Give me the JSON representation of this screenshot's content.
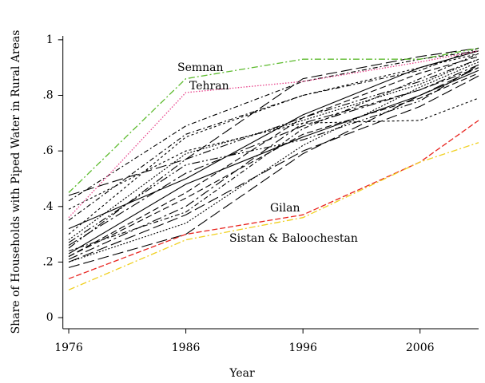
{
  "chart_data": {
    "type": "line",
    "x_label": "Year",
    "y_label": "Share of Households with Piped Water in Rural Areas",
    "x": [
      1976,
      1986,
      1996,
      2006,
      2011
    ],
    "xlim": [
      1975.5,
      2011
    ],
    "xticks": [
      1976,
      1986,
      1996,
      2006
    ],
    "ylim": [
      -0.04,
      1.014
    ],
    "yticks": [
      0,
      {
        "value": 0.2,
        "label": ".2"
      },
      {
        "value": 0.4,
        "label": ".4"
      },
      {
        "value": 0.6,
        "label": ".6"
      },
      {
        "value": 0.8,
        "label": ".8"
      },
      1
    ],
    "series": [
      {
        "name": "Semnan",
        "color": "#5dbb2e",
        "values": [
          0.45,
          0.86,
          0.93,
          0.93,
          0.97
        ]
      },
      {
        "name": "Tehran",
        "color": "#e8418a",
        "values": [
          0.36,
          0.81,
          0.85,
          0.92,
          0.96
        ]
      },
      {
        "name": "Gilan",
        "color": "#e8231e",
        "values": [
          0.14,
          0.3,
          0.37,
          0.56,
          0.71
        ]
      },
      {
        "name": "Sistan & Baloochestan",
        "color": "#f0d020",
        "values": [
          0.1,
          0.28,
          0.36,
          0.56,
          0.63
        ]
      },
      {
        "color": "#000000",
        "values": [
          0.44,
          0.57,
          0.86,
          0.94,
          0.97
        ]
      },
      {
        "color": "#000000",
        "values": [
          0.42,
          0.69,
          0.85,
          0.93,
          0.96
        ]
      },
      {
        "color": "#000000",
        "values": [
          0.3,
          0.65,
          0.8,
          0.9,
          0.95
        ]
      },
      {
        "color": "#000000",
        "values": [
          0.25,
          0.57,
          0.72,
          0.85,
          0.93
        ]
      },
      {
        "color": "#000000",
        "values": [
          0.23,
          0.48,
          0.65,
          0.8,
          0.89
        ]
      },
      {
        "color": "#000000",
        "values": [
          0.22,
          0.45,
          0.72,
          0.88,
          0.94
        ]
      },
      {
        "color": "#000000",
        "values": [
          0.21,
          0.4,
          0.7,
          0.82,
          0.9
        ]
      },
      {
        "color": "#000000",
        "values": [
          0.2,
          0.34,
          0.62,
          0.83,
          0.92
        ]
      },
      {
        "color": "#000000",
        "values": [
          0.18,
          0.3,
          0.59,
          0.8,
          0.9
        ]
      },
      {
        "color": "#000000",
        "values": [
          0.24,
          0.38,
          0.68,
          0.86,
          0.95
        ]
      },
      {
        "color": "#000000",
        "values": [
          0.39,
          0.6,
          0.7,
          0.71,
          0.79
        ]
      },
      {
        "color": "#000000",
        "values": [
          0.27,
          0.55,
          0.64,
          0.78,
          0.91
        ]
      },
      {
        "color": "#000000",
        "values": [
          0.32,
          0.5,
          0.73,
          0.9,
          0.96
        ]
      },
      {
        "color": "#000000",
        "values": [
          0.22,
          0.43,
          0.66,
          0.79,
          0.88
        ]
      },
      {
        "color": "#000000",
        "values": [
          0.26,
          0.52,
          0.69,
          0.82,
          0.91
        ]
      },
      {
        "color": "#000000",
        "values": [
          0.28,
          0.59,
          0.71,
          0.84,
          0.93
        ]
      },
      {
        "color": "#000000",
        "values": [
          0.2,
          0.37,
          0.6,
          0.76,
          0.87
        ]
      },
      {
        "color": "#000000",
        "values": [
          0.35,
          0.66,
          0.8,
          0.89,
          0.97
        ]
      }
    ]
  }
}
